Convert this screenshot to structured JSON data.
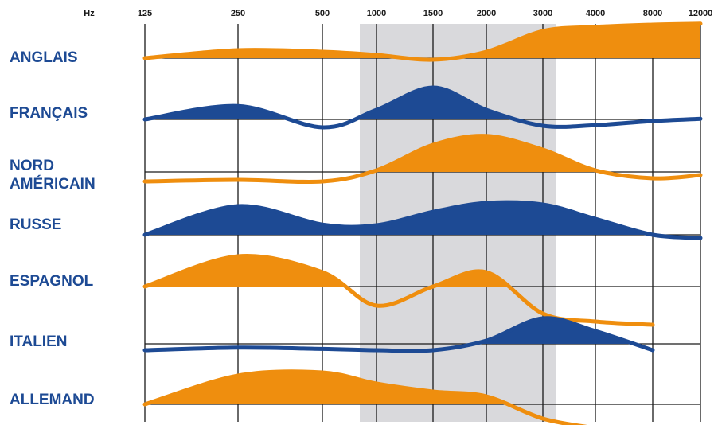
{
  "chart_data": {
    "type": "area",
    "x_unit": "Hz",
    "x_ticks": [
      "125",
      "250",
      "500",
      "1000",
      "1500",
      "2000",
      "3000",
      "4000",
      "8000",
      "12000"
    ],
    "highlight_band": {
      "from": "1000",
      "to": "3000",
      "color": "#d9d9dc"
    },
    "colors": {
      "orange": "#ef8e0e",
      "blue": "#1d4a94",
      "label": "#1d4a94"
    },
    "series": [
      {
        "name": "ANGLAIS",
        "color": "#ef8e0e",
        "points": [
          [
            "125",
            0.0
          ],
          [
            "250",
            0.25
          ],
          [
            "500",
            0.2
          ],
          [
            "1000",
            0.1
          ],
          [
            "1500",
            -0.05
          ],
          [
            "2000",
            0.2
          ],
          [
            "3000",
            0.85
          ],
          [
            "4000",
            0.98
          ],
          [
            "8000",
            1.05
          ],
          [
            "12000",
            1.08
          ]
        ]
      },
      {
        "name": "FRANÇAIS",
        "color": "#1d4a94",
        "points": [
          [
            "125",
            0.0
          ],
          [
            "250",
            0.42
          ],
          [
            "500",
            -0.25
          ],
          [
            "1000",
            0.3
          ],
          [
            "1500",
            1.0
          ],
          [
            "2000",
            0.3
          ],
          [
            "3000",
            -0.2
          ],
          [
            "4000",
            -0.18
          ],
          [
            "8000",
            -0.05
          ],
          [
            "12000",
            0.02
          ]
        ]
      },
      {
        "name": "NORD AMÉRICAIN",
        "color": "#ef8e0e",
        "points": [
          [
            "125",
            -0.3
          ],
          [
            "250",
            -0.25
          ],
          [
            "500",
            -0.3
          ],
          [
            "1000",
            0.05
          ],
          [
            "1500",
            0.85
          ],
          [
            "2000",
            1.13
          ],
          [
            "3000",
            0.7
          ],
          [
            "4000",
            0.05
          ],
          [
            "8000",
            -0.2
          ],
          [
            "12000",
            -0.1
          ]
        ]
      },
      {
        "name": "RUSSE",
        "color": "#1d4a94",
        "points": [
          [
            "125",
            0.0
          ],
          [
            "250",
            0.9
          ],
          [
            "500",
            0.32
          ],
          [
            "1000",
            0.3
          ],
          [
            "1500",
            0.72
          ],
          [
            "2000",
            1.0
          ],
          [
            "3000",
            0.95
          ],
          [
            "4000",
            0.5
          ],
          [
            "8000",
            0.0
          ],
          [
            "12000",
            -0.1
          ]
        ]
      },
      {
        "name": "ESPAGNOL",
        "color": "#ef8e0e",
        "points": [
          [
            "125",
            0.0
          ],
          [
            "250",
            0.95
          ],
          [
            "500",
            0.45
          ],
          [
            "1000",
            -0.6
          ],
          [
            "1500",
            0.0
          ],
          [
            "2000",
            0.45
          ],
          [
            "3000",
            -0.85
          ],
          [
            "4000",
            -1.1
          ],
          [
            "8000",
            -1.2
          ]
        ]
      },
      {
        "name": "ITALIEN",
        "color": "#1d4a94",
        "points": [
          [
            "125",
            -0.2
          ],
          [
            "250",
            -0.12
          ],
          [
            "500",
            -0.16
          ],
          [
            "1000",
            -0.2
          ],
          [
            "1500",
            -0.2
          ],
          [
            "2000",
            0.1
          ],
          [
            "3000",
            0.8
          ],
          [
            "4000",
            0.4
          ],
          [
            "8000",
            -0.2
          ]
        ]
      },
      {
        "name": "ALLEMAND",
        "color": "#ef8e0e",
        "points": [
          [
            "125",
            0.0
          ],
          [
            "250",
            0.9
          ],
          [
            "500",
            1.0
          ],
          [
            "1000",
            0.65
          ],
          [
            "1500",
            0.4
          ],
          [
            "2000",
            0.25
          ],
          [
            "3000",
            -0.45
          ],
          [
            "4000",
            -0.75
          ]
        ]
      }
    ]
  }
}
